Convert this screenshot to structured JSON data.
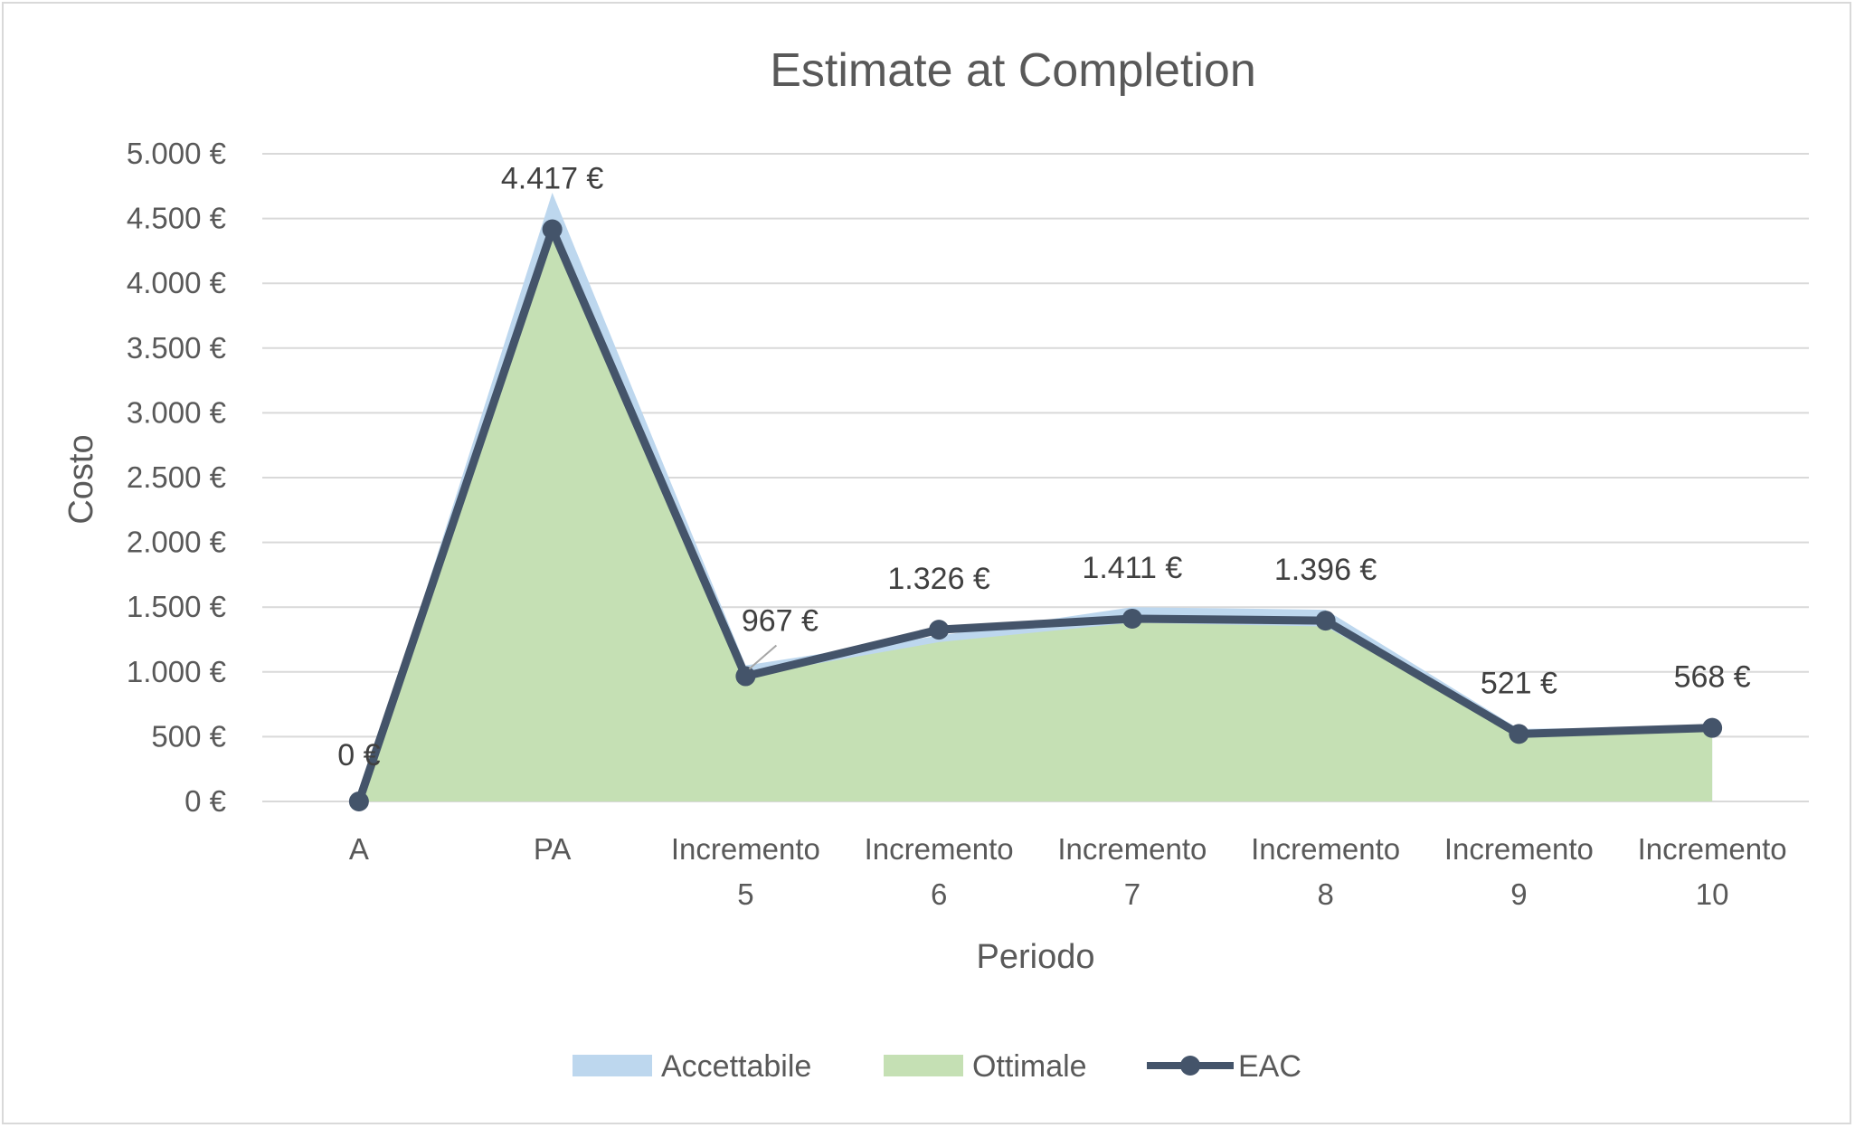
{
  "chart_data": {
    "type": "area",
    "title": "Estimate at Completion",
    "xlabel": "Periodo",
    "ylabel": "Costo",
    "ylim": [
      0,
      5000
    ],
    "yticks": [
      0,
      500,
      1000,
      1500,
      2000,
      2500,
      3000,
      3500,
      4000,
      4500,
      5000
    ],
    "ytick_labels": [
      "0 €",
      "500 €",
      "1.000 €",
      "1.500 €",
      "2.000 €",
      "2.500 €",
      "3.000 €",
      "3.500 €",
      "4.000 €",
      "4.500 €",
      "5.000 €"
    ],
    "categories": [
      [
        "A"
      ],
      [
        "PA"
      ],
      [
        "Incremento",
        "5"
      ],
      [
        "Incremento",
        "6"
      ],
      [
        "Incremento",
        "7"
      ],
      [
        "Incremento",
        "8"
      ],
      [
        "Incremento",
        "9"
      ],
      [
        "Incremento",
        "10"
      ]
    ],
    "grid": true,
    "legend_position": "bottom",
    "series": [
      {
        "name": "Accettabile",
        "kind": "area",
        "color": "#bdd7ee",
        "values": [
          0,
          4700,
          1050,
          1280,
          1500,
          1480,
          560,
          575
        ]
      },
      {
        "name": "Ottimale",
        "kind": "area",
        "color": "#c5e0b4",
        "values": [
          0,
          4417,
          967,
          1230,
          1380,
          1350,
          521,
          555
        ]
      },
      {
        "name": "EAC",
        "kind": "line",
        "color": "#44546a",
        "values": [
          0,
          4417,
          967,
          1326,
          1411,
          1396,
          521,
          568
        ],
        "data_labels": [
          "0 €",
          "4.417 €",
          "967 €",
          "1.326 €",
          "1.411 €",
          "1.396 €",
          "521 €",
          "568 €"
        ]
      }
    ]
  }
}
